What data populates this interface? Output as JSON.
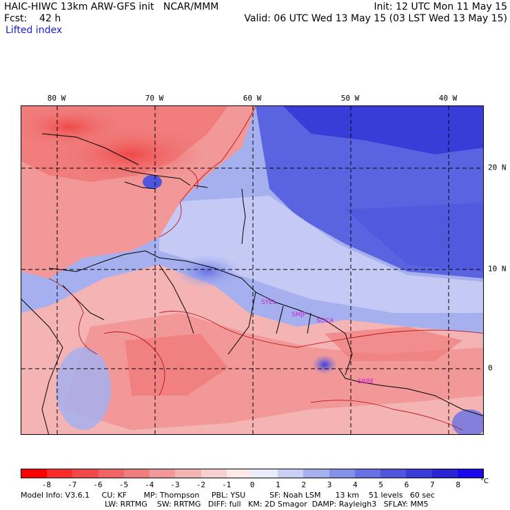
{
  "header": {
    "title": "HAIC-HIWC 13km ARW-GFS init   NCAR/MMM",
    "fcst": "Fcst:    42 h",
    "field": "Lifted index",
    "init": "Init: 12 UTC Mon 11 May 15",
    "valid": "Valid: 06 UTC Wed 13 May 15 (03 LST Wed 13 May 15)"
  },
  "map": {
    "lon_labels": [
      "80 W",
      "70 W",
      "60 W",
      "50 W",
      "40 W"
    ],
    "lat_labels": [
      "20 N",
      "10 N",
      "0"
    ],
    "stations": [
      "SYEL",
      "SMJP",
      "SOCA",
      "SBBE"
    ]
  },
  "colorbar": {
    "colors": [
      "#ff0000",
      "#ff2c2c",
      "#f24848",
      "#f06464",
      "#f07c7c",
      "#f29898",
      "#f5b4b4",
      "#f9d0d0",
      "#fde9e9",
      "#e9ecfb",
      "#c9cff5",
      "#a6b0ee",
      "#8591e8",
      "#6672e3",
      "#4f56dd",
      "#3a3cd8",
      "#2b24d4",
      "#1a08ec"
    ],
    "labels": [
      "-8",
      "-7",
      "-6",
      "-5",
      "-4",
      "-3",
      "-2",
      "-1",
      "0",
      "1",
      "2",
      "3",
      "4",
      "5",
      "6",
      "7",
      "8"
    ],
    "unit": "°C"
  },
  "footer": {
    "line1": "Model Info: V3.6.1     CU: KF       MP: Thompson     PBL: YSU          SF: Noah LSM      13 km    51 levels   60 sec",
    "line2": "LW: RRTMG    SW: RRTMG   DIFF: full   KM: 2D Smagor  DAMP: Rayleigh3   SFLAY: MM5"
  }
}
